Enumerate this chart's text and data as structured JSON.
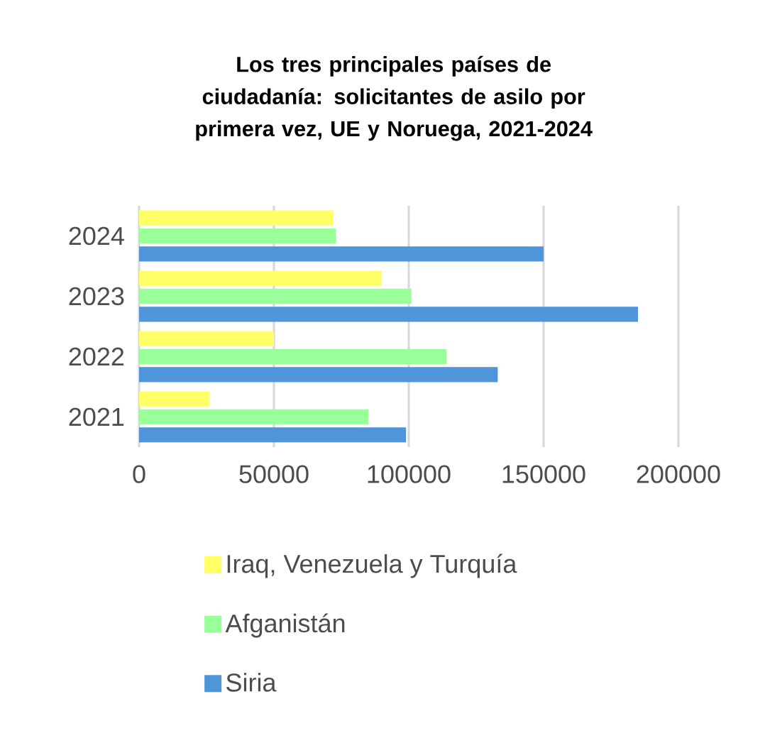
{
  "chart_data": {
    "type": "bar",
    "orientation": "horizontal",
    "title": "Los tres principales países de ciudadanía: solicitantes de asilo por primera vez, UE y Noruega, 2021-2024",
    "categories": [
      "2024",
      "2023",
      "2022",
      "2021"
    ],
    "series": [
      {
        "name": "Iraq, Venezuela y Turquía",
        "color": "#ffff66",
        "values": [
          72000,
          90000,
          50000,
          26000
        ]
      },
      {
        "name": "Afganistán",
        "color": "#99ff99",
        "values": [
          73000,
          101000,
          114000,
          85000
        ]
      },
      {
        "name": "Siria",
        "color": "#4f95d9",
        "values": [
          150000,
          185000,
          133000,
          99000
        ]
      }
    ],
    "xlim": [
      0,
      200000
    ],
    "xticks": [
      0,
      50000,
      100000,
      150000,
      200000
    ],
    "grid": "x",
    "legend": "bottom"
  }
}
